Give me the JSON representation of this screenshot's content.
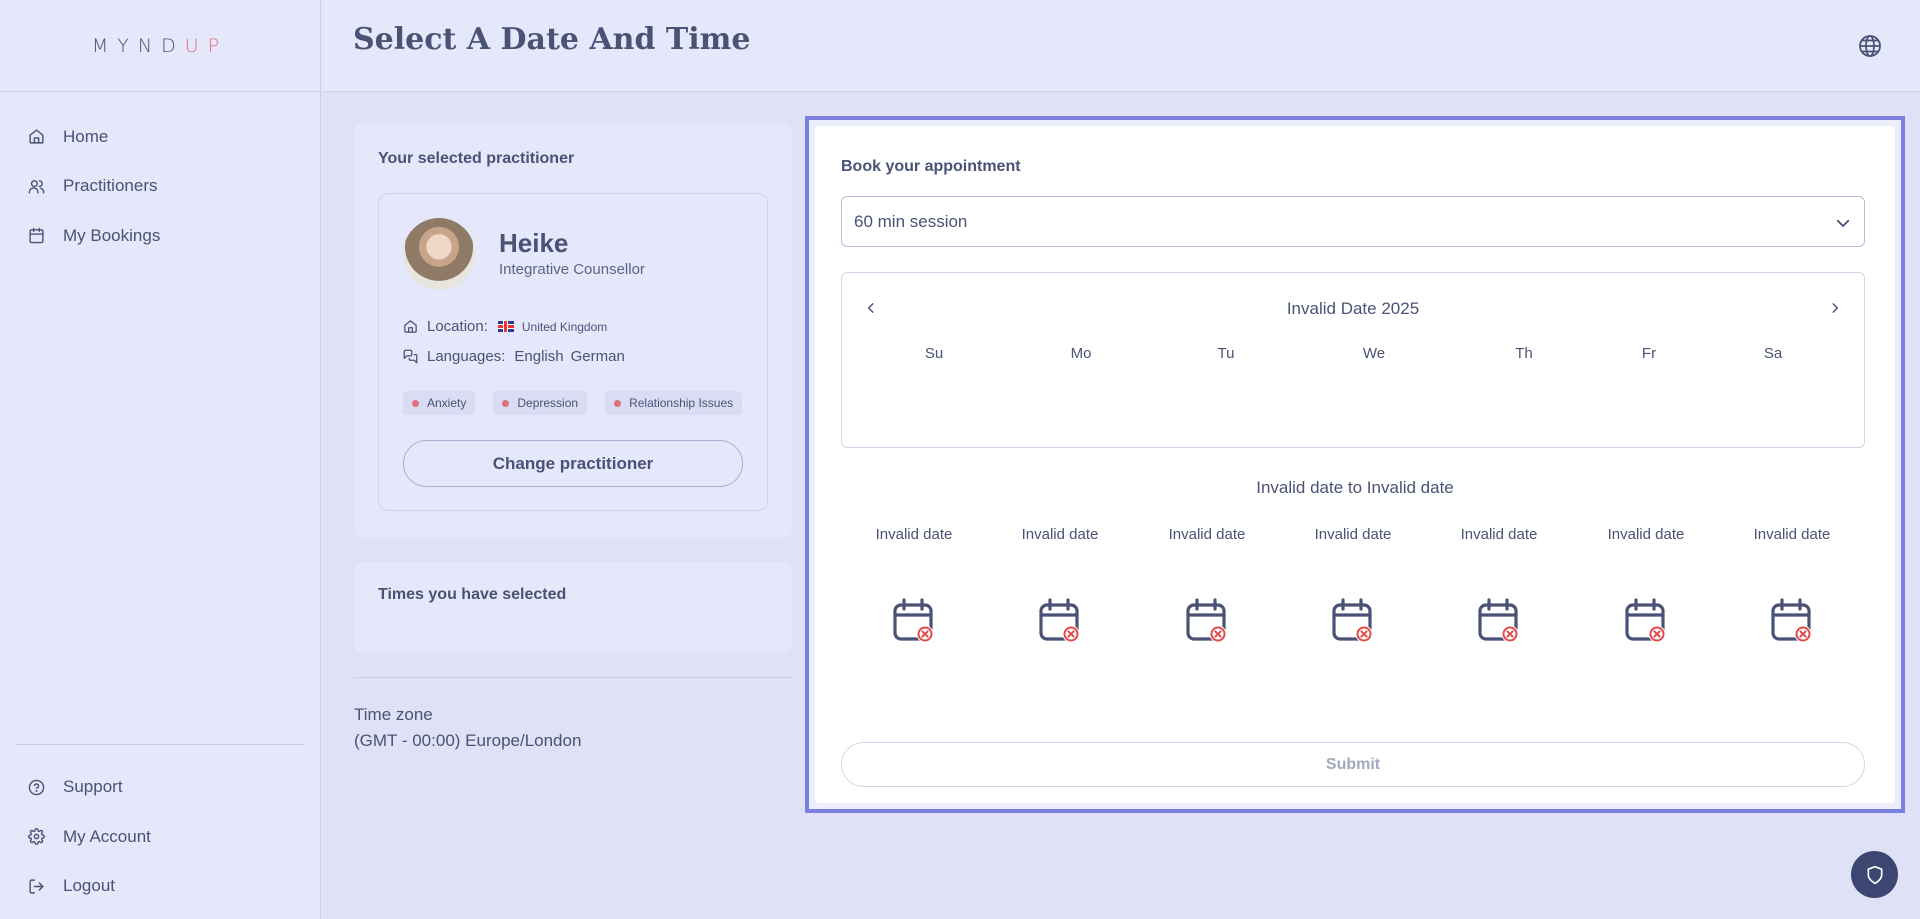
{
  "app": {
    "logo_main": "MYND",
    "logo_accent": "UP"
  },
  "sidebar": {
    "items": [
      {
        "label": "Home",
        "icon": "home-icon"
      },
      {
        "label": "Practitioners",
        "icon": "users-icon"
      },
      {
        "label": "My Bookings",
        "icon": "calendar-icon"
      }
    ],
    "bottom_items": [
      {
        "label": "Support",
        "icon": "help-circle-icon"
      },
      {
        "label": "My Account",
        "icon": "gear-icon"
      },
      {
        "label": "Logout",
        "icon": "logout-icon"
      }
    ]
  },
  "header": {
    "title": "Select A Date And Time",
    "language_icon": "globe-icon"
  },
  "practitioner_card": {
    "title": "Your selected practitioner",
    "name": "Heike",
    "role": "Integrative Counsellor",
    "location_label": "Location:",
    "location_value": "United Kingdom",
    "languages_label": "Languages:",
    "languages": [
      "English",
      "German"
    ],
    "tags": [
      "Anxiety",
      "Depression",
      "Relationship Issues"
    ],
    "change_button": "Change practitioner"
  },
  "selected_times": {
    "title": "Times you have selected"
  },
  "timezone": {
    "label": "Time zone",
    "value": "(GMT - 00:00) Europe/London"
  },
  "booking": {
    "title": "Book your appointment",
    "session_select_value": "60 min session",
    "calendar_title": "Invalid Date 2025",
    "weekdays": [
      "Su",
      "Mo",
      "Tu",
      "We",
      "Th",
      "Fr",
      "Sa"
    ],
    "range_title": "Invalid date to Invalid date",
    "days": [
      "Invalid date",
      "Invalid date",
      "Invalid date",
      "Invalid date",
      "Invalid date",
      "Invalid date",
      "Invalid date"
    ],
    "day_icon": "calendar-unavailable-icon",
    "submit_label": "Submit"
  },
  "colors": {
    "accent": "#e0707a",
    "text": "#4a5275",
    "frame": "#7b80e0",
    "bg": "#dfe1f7"
  }
}
